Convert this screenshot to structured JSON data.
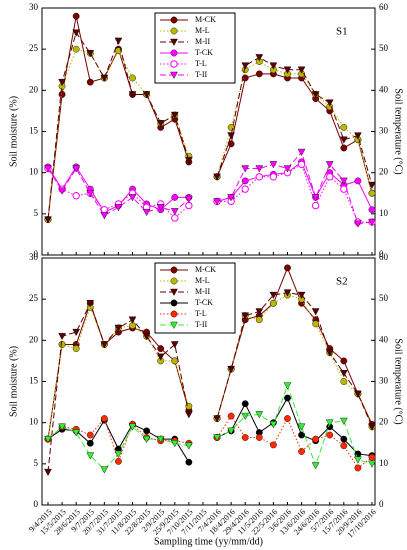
{
  "chart_data": [
    {
      "type": "line",
      "panel_label": "S1",
      "ylabel": "Soil moisture (%)",
      "y2label": "Soil temperature (°C)",
      "categories": [
        "9/4/2015",
        "15/5/2015",
        "28/6/2015",
        "9/7/2015",
        "20/7/2015",
        "31/7/2015",
        "11/8/2015",
        "22/8/2015",
        "2/9/2015",
        "25/9/2015",
        "7/10/2015",
        "7/11/2015",
        "7/4/2016",
        "18/4/2016",
        "29/4/2016",
        "11/5/2016",
        "22/5/2016",
        "3/6/2016",
        "13/6/2016",
        "24/6/2016",
        "5/7/2016",
        "15/7/2016",
        "20/9/2016",
        "17/10/2016"
      ],
      "ylim": [
        0,
        30
      ],
      "yticks": [
        0,
        5,
        10,
        15,
        20,
        25,
        30
      ],
      "y2lim": [
        0,
        60
      ],
      "y2ticks": [
        0,
        10,
        20,
        30,
        40,
        50,
        60
      ],
      "series": [
        {
          "name": "M-CK",
          "color": "#7a0000",
          "marker": "circle",
          "dash": "solid",
          "values": [
            4.3,
            19.5,
            29,
            21,
            21.5,
            25,
            19.5,
            19.5,
            15.5,
            16.5,
            11.3,
            null,
            9.5,
            13.5,
            21.5,
            22,
            22,
            21.5,
            21.5,
            19,
            17.5,
            13,
            14,
            7.5
          ]
        },
        {
          "name": "M-L",
          "color": "#b8b800",
          "marker": "circle",
          "dash": "dotted",
          "values": [
            4.3,
            20.5,
            25,
            24.5,
            21.5,
            24.8,
            21.5,
            19.5,
            16,
            17,
            12,
            null,
            9.5,
            15.5,
            22.5,
            23.5,
            22.5,
            22,
            22,
            19.5,
            18,
            15.5,
            14,
            7.5
          ]
        },
        {
          "name": "M-II",
          "color": "#5a0000",
          "marker": "triangle",
          "dash": "dashed",
          "values": [
            4.3,
            21,
            27,
            24.5,
            21.5,
            26,
            19.5,
            19.5,
            16,
            17,
            11.5,
            null,
            9.5,
            14.5,
            23,
            24,
            23,
            22.5,
            22.5,
            19.5,
            18.5,
            14,
            14.5,
            8.5
          ]
        },
        {
          "name": "T-CK",
          "color": "#ff00ff",
          "marker": "circle",
          "dash": "solid",
          "values": [
            10.7,
            8,
            10.7,
            8,
            5.2,
            6,
            8,
            6.2,
            5.5,
            7,
            7,
            null,
            6.5,
            7,
            9,
            9.5,
            9.8,
            10,
            11.3,
            7,
            10,
            8.5,
            9,
            5.5
          ]
        },
        {
          "name": "T-L",
          "color": "#ff00ff",
          "marker": "circle-open",
          "dash": "dotted",
          "values": [
            10.5,
            8,
            7.2,
            7.5,
            5.5,
            6.2,
            7.5,
            5.8,
            6.2,
            4.5,
            6,
            null,
            6.5,
            6.5,
            8,
            9.5,
            9.5,
            10,
            11,
            6,
            9.5,
            8,
            4,
            4
          ]
        },
        {
          "name": "T-II",
          "color": "#ff00ff",
          "marker": "triangle",
          "dash": "dashed",
          "values": [
            10.5,
            7.8,
            10.5,
            7.5,
            4.8,
            5.8,
            7,
            5.2,
            5.8,
            5.3,
            6.8,
            null,
            6.5,
            7,
            10.5,
            10.5,
            11,
            10.5,
            12.5,
            7,
            11,
            9,
            3.8,
            4
          ]
        }
      ]
    },
    {
      "type": "line",
      "panel_label": "S2",
      "ylabel": "Soil moisture (%)",
      "y2label": "Soil temperature (°C)",
      "xlabel": "Sampling time (yy/mm/dd)",
      "categories": [
        "9/4/2015",
        "15/5/2015",
        "28/6/2015",
        "9/7/2015",
        "20/7/2015",
        "31/7/2015",
        "11/8/2015",
        "22/8/2015",
        "2/9/2015",
        "25/9/2015",
        "7/10/2015",
        "7/11/2015",
        "7/4/2016",
        "18/4/2016",
        "29/4/2016",
        "11/5/2016",
        "22/5/2016",
        "3/6/2016",
        "13/6/2016",
        "24/6/2016",
        "5/7/2016",
        "15/7/2016",
        "20/9/2016",
        "17/10/2016"
      ],
      "ylim": [
        0,
        30
      ],
      "yticks": [
        0,
        5,
        10,
        15,
        20,
        25,
        30
      ],
      "y2lim": [
        0,
        60
      ],
      "y2ticks": [
        0,
        10,
        20,
        30,
        40,
        50,
        60
      ],
      "series": [
        {
          "name": "M-CK",
          "color": "#7a0000",
          "marker": "circle",
          "dash": "solid",
          "values": [
            8,
            19.5,
            19.5,
            24.5,
            19.5,
            21,
            21.5,
            21,
            19,
            17.5,
            11.5,
            null,
            10.5,
            16.5,
            22.5,
            23,
            24.5,
            28.8,
            24.5,
            22.5,
            19,
            17.5,
            13.5,
            9.8
          ]
        },
        {
          "name": "M-L",
          "color": "#b8b800",
          "marker": "circle",
          "dash": "dotted",
          "values": [
            8,
            19.5,
            19,
            24,
            19.5,
            21.5,
            21.8,
            20.5,
            17.5,
            17.5,
            12,
            null,
            10.5,
            16.5,
            23,
            22.5,
            24.5,
            25.5,
            25,
            22,
            18.5,
            15,
            13.5,
            9.5
          ]
        },
        {
          "name": "M-II",
          "color": "#5a0000",
          "marker": "triangle",
          "dash": "dashed",
          "values": [
            4,
            20.5,
            21,
            24.5,
            19.5,
            21.5,
            22.5,
            20.5,
            18,
            19.5,
            11,
            null,
            10.5,
            16.5,
            23,
            23.5,
            25.5,
            25.8,
            25.5,
            23.5,
            18.5,
            16,
            13.5,
            9.5
          ]
        },
        {
          "name": "T-CK",
          "color": "#000000",
          "marker": "circle",
          "dash": "solid",
          "values": [
            8,
            9.2,
            9,
            7.5,
            10.3,
            6.8,
            9.8,
            9,
            8,
            8,
            5.2,
            null,
            8.2,
            9,
            12.3,
            8.8,
            10,
            13,
            8.5,
            7.8,
            9.5,
            8,
            6.2,
            6
          ]
        },
        {
          "name": "T-L",
          "color": "#ff2a00",
          "marker": "circle",
          "dash": "dotted",
          "values": [
            8,
            9.5,
            9.2,
            8.5,
            10.5,
            5.3,
            9.8,
            8.2,
            7.8,
            7.8,
            7.5,
            null,
            8.2,
            10.8,
            8.2,
            8.2,
            7.3,
            10.5,
            6.5,
            8,
            8.5,
            7.2,
            4.5,
            5.8
          ]
        },
        {
          "name": "T-II",
          "color": "#33ee33",
          "marker": "triangle",
          "dash": "dashed",
          "values": [
            8,
            9.5,
            8.8,
            6,
            4.3,
            6.2,
            9.5,
            8,
            8,
            7.5,
            7.2,
            null,
            8.2,
            9,
            10.8,
            11,
            9.8,
            14.5,
            9.5,
            4.8,
            10,
            10.2,
            5.5,
            5
          ]
        }
      ]
    }
  ]
}
